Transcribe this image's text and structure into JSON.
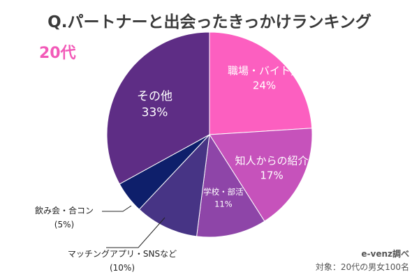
{
  "title": "Q.パートナーと出会ったきっかけランキング",
  "subtitle": "20代",
  "credit": {
    "line1": "e-venz調べ",
    "line2": "対象：20代の男女100名"
  },
  "colors": {
    "subtitle": "#f25ab8",
    "slices": [
      "#fc5fc0",
      "#c652bb",
      "#8e45a8",
      "#473485",
      "#0e1f6b",
      "#5e2d85"
    ],
    "outside_label": "#222222",
    "leader_line": "#222222"
  },
  "chart_data": {
    "type": "pie",
    "start_angle_deg": 0,
    "direction": "clockwise",
    "slices": [
      {
        "label": "職場・バイト先",
        "value": 24,
        "value_label": "24%",
        "label_pos": "inside"
      },
      {
        "label": "知人からの紹介",
        "value": 17,
        "value_label": "17%",
        "label_pos": "inside"
      },
      {
        "label": "学校・部活",
        "value": 11,
        "value_label": "11%",
        "label_pos": "inside"
      },
      {
        "label": "マッチングアプリ・SNSなど",
        "value": 10,
        "value_label": "(10%)",
        "label_pos": "outside"
      },
      {
        "label": "飲み会・合コン",
        "value": 5,
        "value_label": "(5%)",
        "label_pos": "outside"
      },
      {
        "label": "その他",
        "value": 33,
        "value_label": "33%",
        "label_pos": "inside"
      }
    ]
  }
}
